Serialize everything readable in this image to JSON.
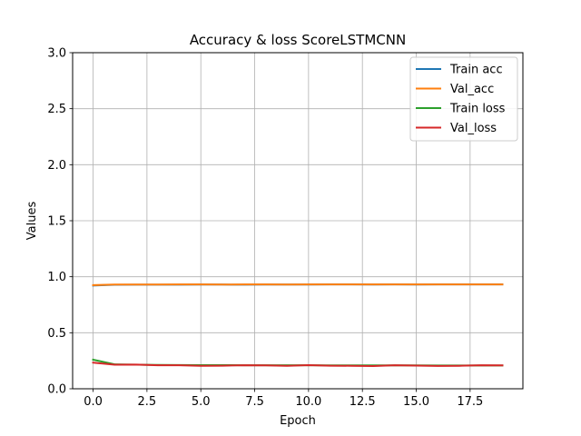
{
  "chart_data": {
    "type": "line",
    "title": "Accuracy & loss ScoreLSTMCNN",
    "xlabel": "Epoch",
    "ylabel": "Values",
    "x": [
      0,
      1,
      2,
      3,
      4,
      5,
      6,
      7,
      8,
      9,
      10,
      11,
      12,
      13,
      14,
      15,
      16,
      17,
      18,
      19
    ],
    "xlim": [
      -0.95,
      19.95
    ],
    "ylim": [
      0,
      3.0
    ],
    "xticks": [
      "0.0",
      "2.5",
      "5.0",
      "7.5",
      "10.0",
      "12.5",
      "15.0",
      "17.5"
    ],
    "xtick_values": [
      0,
      2.5,
      5,
      7.5,
      10,
      12.5,
      15,
      17.5
    ],
    "yticks": [
      "0.0",
      "0.5",
      "1.0",
      "1.5",
      "2.0",
      "2.5",
      "3.0"
    ],
    "ytick_values": [
      0,
      0.5,
      1,
      1.5,
      2,
      2.5,
      3
    ],
    "grid": true,
    "legend_position": "top-right",
    "series": [
      {
        "name": "Train acc",
        "color": "#1f77b4",
        "values": [
          0.922,
          0.928,
          0.929,
          0.929,
          0.929,
          0.93,
          0.93,
          0.929,
          0.93,
          0.93,
          0.93,
          0.931,
          0.931,
          0.93,
          0.931,
          0.93,
          0.931,
          0.931,
          0.931,
          0.931
        ]
      },
      {
        "name": "Val_acc",
        "color": "#ff7f0e",
        "values": [
          0.925,
          0.93,
          0.93,
          0.93,
          0.931,
          0.931,
          0.93,
          0.931,
          0.931,
          0.93,
          0.931,
          0.931,
          0.931,
          0.931,
          0.931,
          0.931,
          0.931,
          0.931,
          0.931,
          0.931
        ]
      },
      {
        "name": "Train loss",
        "color": "#2ca02c",
        "values": [
          0.26,
          0.218,
          0.215,
          0.213,
          0.212,
          0.211,
          0.211,
          0.21,
          0.21,
          0.21,
          0.21,
          0.209,
          0.209,
          0.209,
          0.209,
          0.209,
          0.208,
          0.208,
          0.208,
          0.208
        ]
      },
      {
        "name": "Val_loss",
        "color": "#d62728",
        "values": [
          0.233,
          0.215,
          0.216,
          0.21,
          0.21,
          0.205,
          0.206,
          0.21,
          0.209,
          0.205,
          0.211,
          0.206,
          0.205,
          0.203,
          0.21,
          0.207,
          0.204,
          0.205,
          0.21,
          0.209
        ]
      }
    ]
  }
}
